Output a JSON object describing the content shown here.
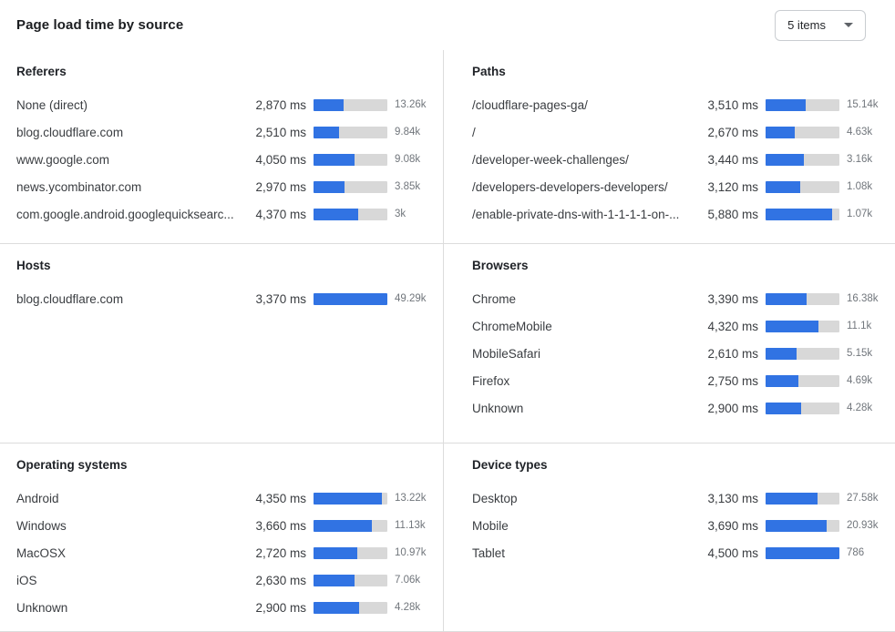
{
  "header": {
    "title": "Page load time by source",
    "items_selector": {
      "value": "5 items",
      "icon": "caret-down-icon"
    }
  },
  "colors": {
    "bar_fill": "#3173e3",
    "bar_track": "#d8d8d8",
    "divider": "#dcdcdc"
  },
  "chart_data": [
    {
      "type": "bar",
      "orientation": "horizontal",
      "title": "Referers",
      "unit": "ms",
      "rows": [
        {
          "label": "None (direct)",
          "ms": 2870,
          "ms_display": "2,870 ms",
          "count_display": "13.26k",
          "bar_pct": 41
        },
        {
          "label": "blog.cloudflare.com",
          "ms": 2510,
          "ms_display": "2,510 ms",
          "count_display": "9.84k",
          "bar_pct": 35
        },
        {
          "label": "www.google.com",
          "ms": 4050,
          "ms_display": "4,050 ms",
          "count_display": "9.08k",
          "bar_pct": 56
        },
        {
          "label": "news.ycombinator.com",
          "ms": 2970,
          "ms_display": "2,970 ms",
          "count_display": "3.85k",
          "bar_pct": 42
        },
        {
          "label": "com.google.android.googlequicksearc...",
          "ms": 4370,
          "ms_display": "4,370 ms",
          "count_display": "3k",
          "bar_pct": 61
        }
      ]
    },
    {
      "type": "bar",
      "orientation": "horizontal",
      "title": "Paths",
      "unit": "ms",
      "rows": [
        {
          "label": "/cloudflare-pages-ga/",
          "ms": 3510,
          "ms_display": "3,510 ms",
          "count_display": "15.14k",
          "bar_pct": 54
        },
        {
          "label": "/",
          "ms": 2670,
          "ms_display": "2,670 ms",
          "count_display": "4.63k",
          "bar_pct": 40
        },
        {
          "label": "/developer-week-challenges/",
          "ms": 3440,
          "ms_display": "3,440 ms",
          "count_display": "3.16k",
          "bar_pct": 52
        },
        {
          "label": "/developers-developers-developers/",
          "ms": 3120,
          "ms_display": "3,120 ms",
          "count_display": "1.08k",
          "bar_pct": 47
        },
        {
          "label": "/enable-private-dns-with-1-1-1-1-on-...",
          "ms": 5880,
          "ms_display": "5,880 ms",
          "count_display": "1.07k",
          "bar_pct": 90
        }
      ]
    },
    {
      "type": "bar",
      "orientation": "horizontal",
      "title": "Hosts",
      "unit": "ms",
      "rows": [
        {
          "label": "blog.cloudflare.com",
          "ms": 3370,
          "ms_display": "3,370 ms",
          "count_display": "49.29k",
          "bar_pct": 100
        }
      ]
    },
    {
      "type": "bar",
      "orientation": "horizontal",
      "title": "Browsers",
      "unit": "ms",
      "rows": [
        {
          "label": "Chrome",
          "ms": 3390,
          "ms_display": "3,390 ms",
          "count_display": "16.38k",
          "bar_pct": 56
        },
        {
          "label": "ChromeMobile",
          "ms": 4320,
          "ms_display": "4,320 ms",
          "count_display": "11.1k",
          "bar_pct": 71
        },
        {
          "label": "MobileSafari",
          "ms": 2610,
          "ms_display": "2,610 ms",
          "count_display": "5.15k",
          "bar_pct": 42
        },
        {
          "label": "Firefox",
          "ms": 2750,
          "ms_display": "2,750 ms",
          "count_display": "4.69k",
          "bar_pct": 45
        },
        {
          "label": "Unknown",
          "ms": 2900,
          "ms_display": "2,900 ms",
          "count_display": "4.28k",
          "bar_pct": 48
        }
      ]
    },
    {
      "type": "bar",
      "orientation": "horizontal",
      "title": "Operating systems",
      "unit": "ms",
      "rows": [
        {
          "label": "Android",
          "ms": 4350,
          "ms_display": "4,350 ms",
          "count_display": "13.22k",
          "bar_pct": 93
        },
        {
          "label": "Windows",
          "ms": 3660,
          "ms_display": "3,660 ms",
          "count_display": "11.13k",
          "bar_pct": 79
        },
        {
          "label": "MacOSX",
          "ms": 2720,
          "ms_display": "2,720 ms",
          "count_display": "10.97k",
          "bar_pct": 59
        },
        {
          "label": "iOS",
          "ms": 2630,
          "ms_display": "2,630 ms",
          "count_display": "7.06k",
          "bar_pct": 56
        },
        {
          "label": "Unknown",
          "ms": 2900,
          "ms_display": "2,900 ms",
          "count_display": "4.28k",
          "bar_pct": 62
        }
      ]
    },
    {
      "type": "bar",
      "orientation": "horizontal",
      "title": "Device types",
      "unit": "ms",
      "rows": [
        {
          "label": "Desktop",
          "ms": 3130,
          "ms_display": "3,130 ms",
          "count_display": "27.58k",
          "bar_pct": 70
        },
        {
          "label": "Mobile",
          "ms": 3690,
          "ms_display": "3,690 ms",
          "count_display": "20.93k",
          "bar_pct": 83
        },
        {
          "label": "Tablet",
          "ms": 4500,
          "ms_display": "4,500 ms",
          "count_display": "786",
          "bar_pct": 100
        }
      ]
    }
  ]
}
